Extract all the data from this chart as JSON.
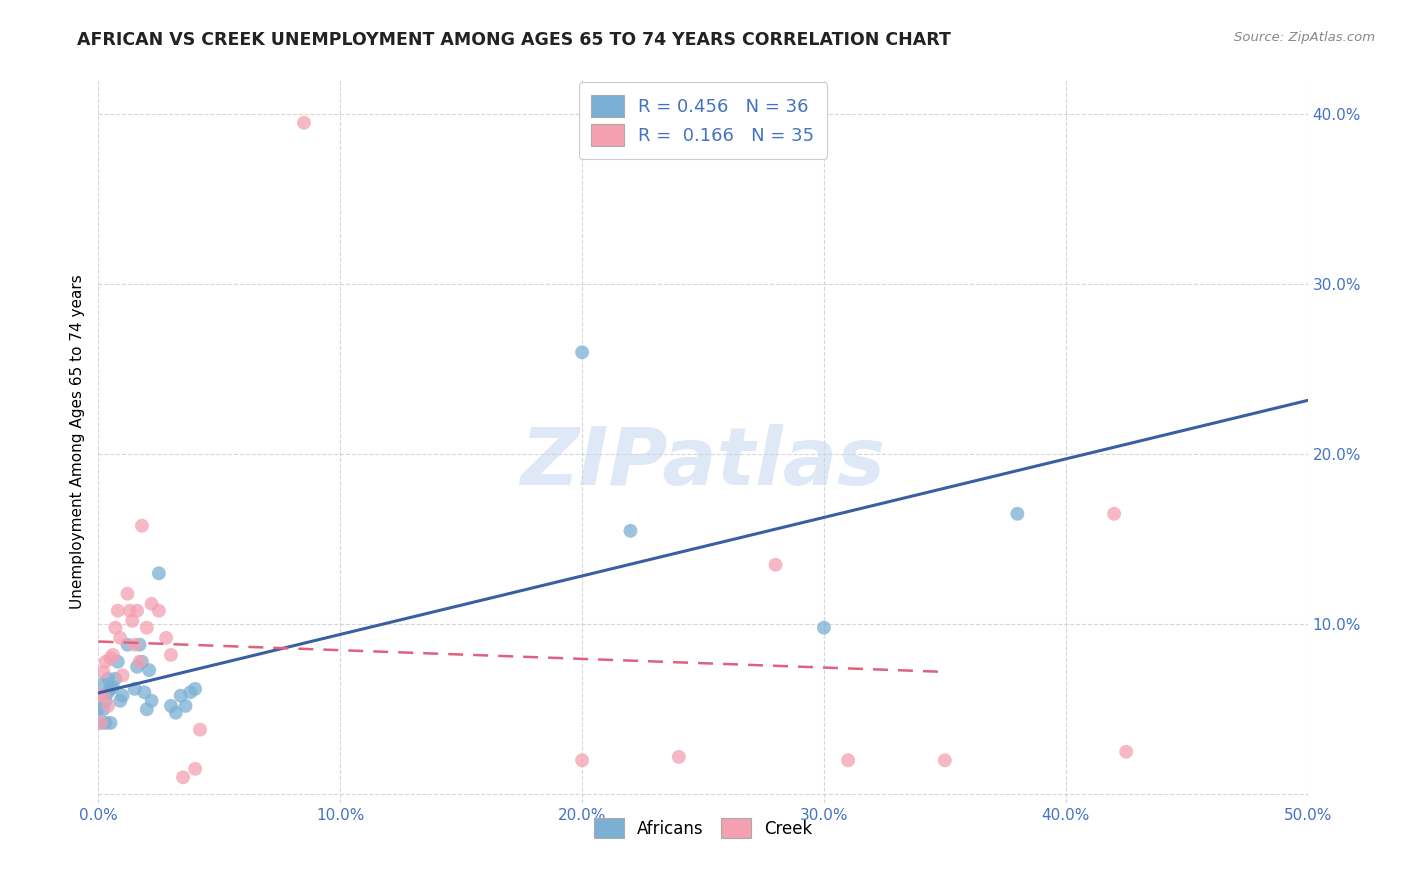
{
  "title": "AFRICAN VS CREEK UNEMPLOYMENT AMONG AGES 65 TO 74 YEARS CORRELATION CHART",
  "source": "Source: ZipAtlas.com",
  "ylabel": "Unemployment Among Ages 65 to 74 years",
  "xlim": [
    0.0,
    0.5
  ],
  "ylim": [
    -0.005,
    0.42
  ],
  "xticks": [
    0.0,
    0.1,
    0.2,
    0.3,
    0.4,
    0.5
  ],
  "yticks": [
    0.0,
    0.1,
    0.2,
    0.3,
    0.4
  ],
  "xtick_labels": [
    "0.0%",
    "10.0%",
    "20.0%",
    "30.0%",
    "40.0%",
    "50.0%"
  ],
  "ytick_labels": [
    "",
    "10.0%",
    "20.0%",
    "30.0%",
    "40.0%"
  ],
  "africans_color": "#7bafd4",
  "creek_color": "#f4a0b0",
  "africans_line_color": "#3a5fa0",
  "creek_line_color": "#e06080",
  "legend_africans_label": "R = 0.456   N = 36",
  "legend_creek_label": "R =  0.166   N = 35",
  "legend_bottom_africans": "Africans",
  "legend_bottom_creek": "Creek",
  "watermark": "ZIPatlas",
  "background_color": "#ffffff",
  "grid_color": "#cccccc",
  "africans_x": [
    0.0,
    0.001,
    0.001,
    0.002,
    0.002,
    0.003,
    0.003,
    0.004,
    0.004,
    0.005,
    0.005,
    0.006,
    0.007,
    0.008,
    0.009,
    0.01,
    0.012,
    0.015,
    0.016,
    0.017,
    0.018,
    0.019,
    0.02,
    0.021,
    0.022,
    0.025,
    0.03,
    0.032,
    0.034,
    0.036,
    0.038,
    0.04,
    0.2,
    0.22,
    0.3,
    0.38
  ],
  "africans_y": [
    0.05,
    0.042,
    0.058,
    0.05,
    0.065,
    0.042,
    0.055,
    0.06,
    0.068,
    0.042,
    0.062,
    0.063,
    0.068,
    0.078,
    0.055,
    0.058,
    0.088,
    0.062,
    0.075,
    0.088,
    0.078,
    0.06,
    0.05,
    0.073,
    0.055,
    0.13,
    0.052,
    0.048,
    0.058,
    0.052,
    0.06,
    0.062,
    0.26,
    0.155,
    0.098,
    0.165
  ],
  "creek_x": [
    0.0,
    0.001,
    0.002,
    0.002,
    0.003,
    0.004,
    0.005,
    0.006,
    0.007,
    0.008,
    0.009,
    0.01,
    0.012,
    0.013,
    0.014,
    0.015,
    0.016,
    0.017,
    0.018,
    0.02,
    0.022,
    0.025,
    0.028,
    0.03,
    0.035,
    0.04,
    0.042,
    0.085,
    0.2,
    0.24,
    0.28,
    0.31,
    0.35,
    0.42,
    0.425
  ],
  "creek_y": [
    0.058,
    0.042,
    0.058,
    0.072,
    0.078,
    0.052,
    0.08,
    0.082,
    0.098,
    0.108,
    0.092,
    0.07,
    0.118,
    0.108,
    0.102,
    0.088,
    0.108,
    0.078,
    0.158,
    0.098,
    0.112,
    0.108,
    0.092,
    0.082,
    0.01,
    0.015,
    0.038,
    0.395,
    0.02,
    0.022,
    0.135,
    0.02,
    0.02,
    0.165,
    0.025
  ]
}
